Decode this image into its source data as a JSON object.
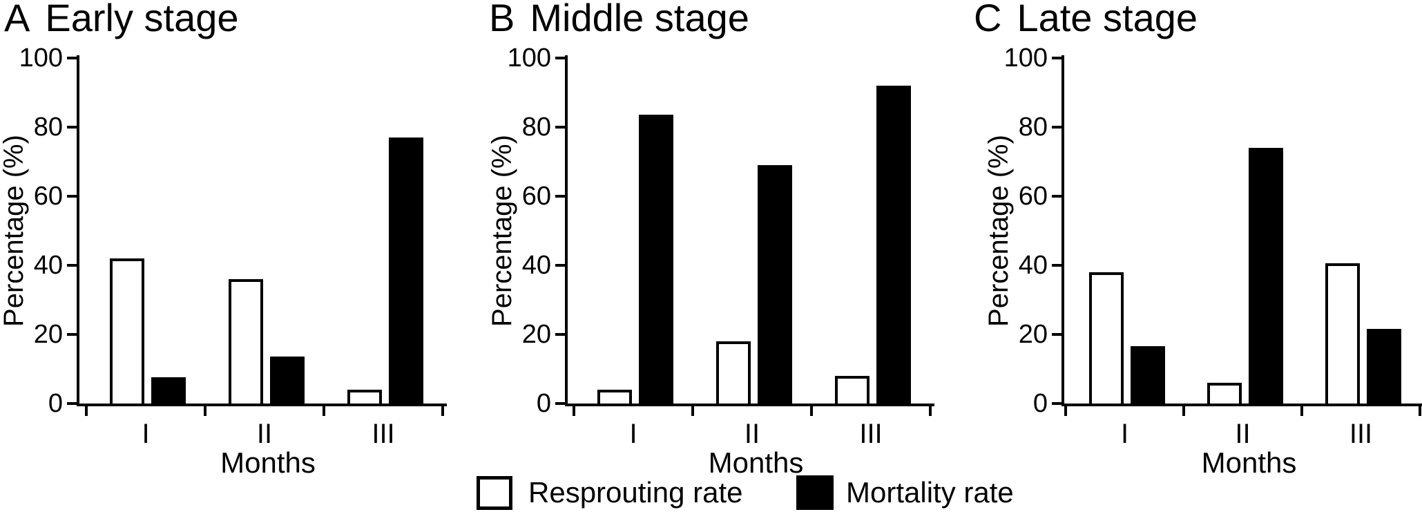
{
  "figure": {
    "legend": {
      "items": [
        {
          "label": "Resprouting rate",
          "fill": "#ffffff"
        },
        {
          "label": "Mortality rate",
          "fill": "#000000"
        }
      ]
    }
  },
  "chart_data": [
    {
      "type": "bar",
      "panel": "A",
      "title": "Early stage",
      "xlabel": "Months",
      "ylabel": "Percentage (%)",
      "ylim": [
        0,
        100
      ],
      "yticks": [
        0,
        20,
        40,
        60,
        80,
        100
      ],
      "grid": false,
      "legend_position": "bottom-center",
      "categories": [
        "I",
        "II",
        "III"
      ],
      "series": [
        {
          "name": "Resprouting rate",
          "fill": "#ffffff",
          "values": [
            42,
            36,
            4
          ]
        },
        {
          "name": "Mortality rate",
          "fill": "#000000",
          "values": [
            7.5,
            13.5,
            77
          ]
        }
      ]
    },
    {
      "type": "bar",
      "panel": "B",
      "title": "Middle stage",
      "xlabel": "Months",
      "ylabel": "Percentage (%)",
      "ylim": [
        0,
        100
      ],
      "yticks": [
        0,
        20,
        40,
        60,
        80,
        100
      ],
      "grid": false,
      "legend_position": "bottom-center",
      "categories": [
        "I",
        "II",
        "III"
      ],
      "series": [
        {
          "name": "Resprouting rate",
          "fill": "#ffffff",
          "values": [
            4,
            18,
            8
          ]
        },
        {
          "name": "Mortality rate",
          "fill": "#000000",
          "values": [
            83.5,
            69,
            92
          ]
        }
      ]
    },
    {
      "type": "bar",
      "panel": "C",
      "title": "Late stage",
      "xlabel": "Months",
      "ylabel": "Percentage (%)",
      "ylim": [
        0,
        100
      ],
      "yticks": [
        0,
        20,
        40,
        60,
        80,
        100
      ],
      "grid": false,
      "legend_position": "bottom-center",
      "categories": [
        "I",
        "II",
        "III"
      ],
      "series": [
        {
          "name": "Resprouting rate",
          "fill": "#ffffff",
          "values": [
            38,
            6,
            40.5
          ]
        },
        {
          "name": "Mortality rate",
          "fill": "#000000",
          "values": [
            16.5,
            74,
            21.5
          ]
        }
      ]
    }
  ]
}
